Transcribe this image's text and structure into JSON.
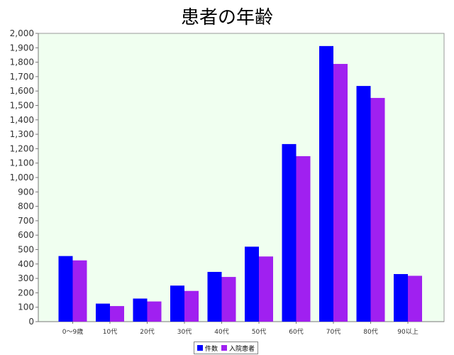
{
  "colors": {
    "plot_background": "#f0fff0",
    "series_1": "#0000ff",
    "series_2": "#a020f0"
  },
  "chart_data": {
    "type": "bar",
    "title": "患者の年齢",
    "xlabel": "",
    "ylabel": "",
    "categories": [
      "0〜9歳",
      "10代",
      "20代",
      "30代",
      "40代",
      "50代",
      "60代",
      "70代",
      "80代",
      "90以上"
    ],
    "series": [
      {
        "name": "件数",
        "values": [
          455,
          125,
          160,
          250,
          345,
          520,
          1232,
          1912,
          1635,
          330
        ]
      },
      {
        "name": "入院患者",
        "values": [
          425,
          108,
          140,
          213,
          310,
          452,
          1148,
          1788,
          1552,
          318
        ]
      }
    ],
    "ylim": [
      0,
      2000
    ],
    "yticks": [
      "0",
      "100",
      "200",
      "300",
      "400",
      "500",
      "600",
      "700",
      "800",
      "900",
      "1,000",
      "1,100",
      "1,200",
      "1,300",
      "1,400",
      "1,500",
      "1,600",
      "1,700",
      "1,800",
      "1,900",
      "2,000"
    ],
    "grid": false,
    "legend": "bottom-center"
  }
}
